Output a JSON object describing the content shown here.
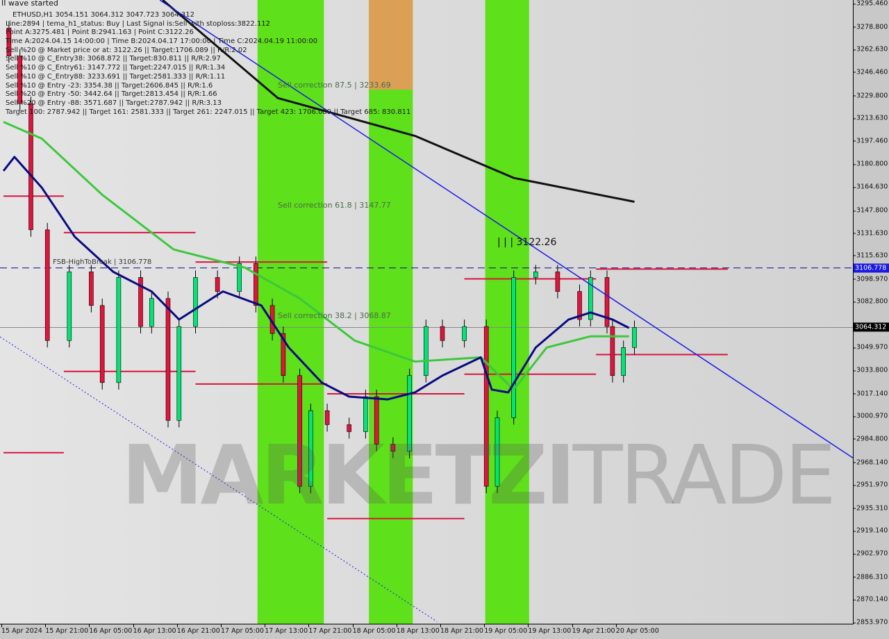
{
  "chart_data": {
    "type": "candlestick",
    "symbol_line": "ETHUSD,H1  3054.151 3064.312 3047.723 3064.312",
    "header_text": "II wave started",
    "info_lines": [
      "Line:2894 | tema_h1_status: Buy | Last Signal is:Sell with stoploss:3822.112",
      "Point A:3275.481 | Point B:2941.163 | Point C:3122.26",
      "Time A:2024.04.15 14:00:00 | Time B:2024.04.17 17:00:00 | Time C:2024.04.19 11:00:00",
      "Sell %20 @ Market price or at: 3122.26 || Target:1706.089 || R/R:2.02",
      "Sell %10 @ C_Entry38: 3068.872 || Target:830.811 || R/R:2.97",
      "Sell %10 @ C_Entry61: 3147.772 || Target:2247.015 || R/R:1.34",
      "Sell %10 @ C_Entry88: 3233.691 || Target:2581.333 || R/R:1.11",
      "Sell %10 @ Entry -23: 3354.38 || Target:2606.845 || R/R:1.6",
      "Sell %20 @ Entry -50: 3442.64 || Target:2813.454 || R/R:1.66",
      "Sell %20 @ Entry -88: 3571.687 || Target:2787.942 || R/R:3.13",
      "Target 100: 2787.942 || Target 161: 2581.333 || Target 261: 2247.015 || Target 423: 1706.089 || Target 685: 830.811"
    ],
    "annotations": [
      {
        "text": "Sell correction 87.5 | 3233.69",
        "bar": 50,
        "price": 3233.69
      },
      {
        "text": "Sell correction 61.8 | 3147.77",
        "bar": 50,
        "price": 3147.77
      },
      {
        "text": "Sell correction 38.2 | 3068.87",
        "bar": 50,
        "price": 3068.87
      },
      {
        "text": "| | | 3122.26",
        "bar": 90,
        "price": 3122.26
      },
      {
        "text": "FSB-HighToBreak | 3106.778",
        "bar": 9,
        "price": 3106.778
      }
    ],
    "watermark": "MARKETZI TRADE",
    "ylim": [
      2853.97,
      3295.46
    ],
    "y_ticks": [
      "3295.460",
      "3278.800",
      "3262.630",
      "3246.460",
      "3229.800",
      "3213.630",
      "3197.460",
      "3180.800",
      "3164.630",
      "3147.800",
      "3131.630",
      "3115.630",
      "3098.970",
      "3082.800",
      "3049.970",
      "3033.800",
      "3017.140",
      "3000.970",
      "2984.800",
      "2968.140",
      "2951.970",
      "2935.310",
      "2919.140",
      "2902.970",
      "2886.310",
      "2870.140",
      "2853.970"
    ],
    "x_ticks": [
      {
        "label": "15 Apr 2024",
        "bar": 0
      },
      {
        "label": "15 Apr 21:00",
        "bar": 8
      },
      {
        "label": "16 Apr 05:00",
        "bar": 16
      },
      {
        "label": "16 Apr 13:00",
        "bar": 24
      },
      {
        "label": "16 Apr 21:00",
        "bar": 32
      },
      {
        "label": "17 Apr 05:00",
        "bar": 40
      },
      {
        "label": "17 Apr 13:00",
        "bar": 48
      },
      {
        "label": "17 Apr 21:00",
        "bar": 56
      },
      {
        "label": "18 Apr 05:00",
        "bar": 64
      },
      {
        "label": "18 Apr 13:00",
        "bar": 72
      },
      {
        "label": "18 Apr 21:00",
        "bar": 80
      },
      {
        "label": "19 Apr 05:00",
        "bar": 88
      },
      {
        "label": "19 Apr 13:00",
        "bar": 96
      },
      {
        "label": "19 Apr 21:00",
        "bar": 104
      },
      {
        "label": "20 Apr 05:00",
        "bar": 112
      }
    ],
    "current_price": "3064.312",
    "level_price": "3106.778",
    "candles": [
      [
        1,
        3258
      ],
      [
        3,
        3224
      ],
      [
        5,
        3134
      ],
      [
        8,
        3055
      ],
      [
        12,
        3104
      ],
      [
        16,
        3080
      ],
      [
        18,
        3025
      ],
      [
        21,
        3100
      ],
      [
        25,
        3065
      ],
      [
        27,
        3085
      ],
      [
        30,
        2998
      ],
      [
        32,
        3065
      ],
      [
        35,
        3100
      ],
      [
        39,
        3090
      ],
      [
        43,
        3110
      ],
      [
        46,
        3080
      ],
      [
        49,
        3060
      ],
      [
        51,
        3030
      ],
      [
        54,
        2951
      ],
      [
        56,
        3005
      ],
      [
        59,
        2995
      ],
      [
        63,
        2990
      ],
      [
        66,
        3015
      ],
      [
        68,
        2981
      ],
      [
        71,
        2976
      ],
      [
        74,
        3030
      ],
      [
        77,
        3065
      ],
      [
        80,
        3055
      ],
      [
        84,
        3065
      ],
      [
        88,
        2951
      ],
      [
        90,
        3000
      ],
      [
        93,
        3100
      ],
      [
        97,
        3104
      ],
      [
        101,
        3090
      ],
      [
        105,
        3070
      ],
      [
        107,
        3100
      ],
      [
        110,
        3065
      ],
      [
        111,
        3030
      ],
      [
        113,
        3050
      ],
      [
        115,
        3064.312
      ]
    ],
    "ma_slow": [
      [
        29,
        3298
      ],
      [
        50,
        3228
      ],
      [
        75,
        3201
      ],
      [
        93,
        3171
      ],
      [
        115,
        3154
      ]
    ],
    "ema_fast": [
      [
        0,
        3176
      ],
      [
        2,
        3186
      ],
      [
        7,
        3164
      ],
      [
        13,
        3129
      ],
      [
        20,
        3104
      ],
      [
        27,
        3090
      ],
      [
        32,
        3070
      ],
      [
        40,
        3090
      ],
      [
        47,
        3080
      ],
      [
        52,
        3050
      ],
      [
        58,
        3025
      ],
      [
        63,
        3015
      ],
      [
        70,
        3013
      ],
      [
        75,
        3018
      ],
      [
        80,
        3030
      ],
      [
        87,
        3043
      ],
      [
        89,
        3020
      ],
      [
        92,
        3018
      ],
      [
        97,
        3050
      ],
      [
        103,
        3070
      ],
      [
        107,
        3075
      ],
      [
        111,
        3070
      ],
      [
        114,
        3064
      ]
    ],
    "ma_mid": [
      [
        0,
        3211
      ],
      [
        7,
        3199
      ],
      [
        18,
        3159
      ],
      [
        31,
        3120
      ],
      [
        44,
        3107
      ],
      [
        54,
        3085
      ],
      [
        64,
        3055
      ],
      [
        75,
        3040
      ],
      [
        87,
        3043
      ],
      [
        93,
        3020
      ],
      [
        99,
        3050
      ],
      [
        107,
        3058
      ],
      [
        114,
        3058
      ]
    ],
    "trendline": [
      [
        28.5,
        3297.9
      ],
      [
        155,
        2970.8
      ]
    ],
    "dotted_line": [
      [
        -0.6,
        3057.6
      ],
      [
        79,
        2854.5
      ]
    ],
    "red_levels": [
      [
        0,
        11,
        3158
      ],
      [
        11,
        35,
        3132
      ],
      [
        35,
        59,
        3111
      ],
      [
        11,
        35,
        3033
      ],
      [
        35,
        59,
        3024
      ],
      [
        59,
        84,
        3017
      ],
      [
        59,
        84,
        2928
      ],
      [
        0,
        11,
        2975
      ],
      [
        84,
        108,
        3099
      ],
      [
        84,
        108,
        3031
      ],
      [
        108,
        132,
        3106
      ],
      [
        108,
        132,
        3045
      ]
    ],
    "green_zones": [
      [
        46.3,
        58.4
      ],
      [
        66.6,
        74.6
      ],
      [
        87.8,
        95.8
      ]
    ],
    "orange_zone": [
      66.6,
      74.6,
      3234
    ],
    "colors": {
      "up": "#00e676",
      "down": "#e0143c",
      "zone": "#5ee01a",
      "orange": "#dba055",
      "ema": "#0a0a80",
      "ma_mid": "#3cc83c",
      "ma_slow": "#111111",
      "trend": "#1a1ae6",
      "level": "#d8143c"
    }
  }
}
